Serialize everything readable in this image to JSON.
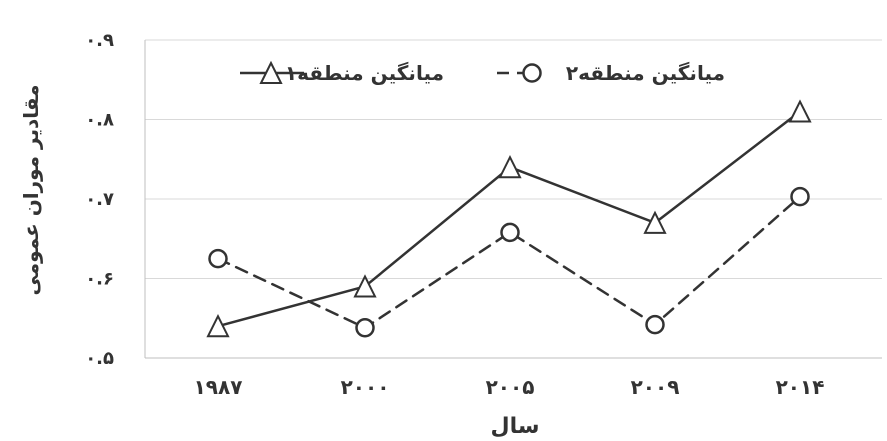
{
  "chart_data": {
    "type": "line",
    "categories": [
      "۱۹۸۷",
      "۲۰۰۰",
      "۲۰۰۵",
      "۲۰۰۹",
      "۲۰۱۴"
    ],
    "series": [
      {
        "name": "میانگین منطقه۱",
        "values": [
          0.54,
          0.59,
          0.74,
          0.67,
          0.81
        ],
        "marker": "triangle",
        "line_style": "solid",
        "color": "#333333"
      },
      {
        "name": "میانگین منطقه۲",
        "values": [
          0.625,
          0.538,
          0.658,
          0.542,
          0.703
        ],
        "marker": "circle",
        "line_style": "dashed",
        "color": "#333333"
      }
    ],
    "xlabel": "سال",
    "ylabel": "مقادیر موران عمومی",
    "ylim": [
      0.5,
      0.9
    ],
    "yticks": [
      0.5,
      0.6,
      0.7,
      0.8,
      0.9
    ],
    "ytick_labels": [
      "۰.۵",
      "۰.۶",
      "۰.۷",
      "۰.۸",
      "۰.۹"
    ],
    "grid": true,
    "legend_position": "top"
  }
}
